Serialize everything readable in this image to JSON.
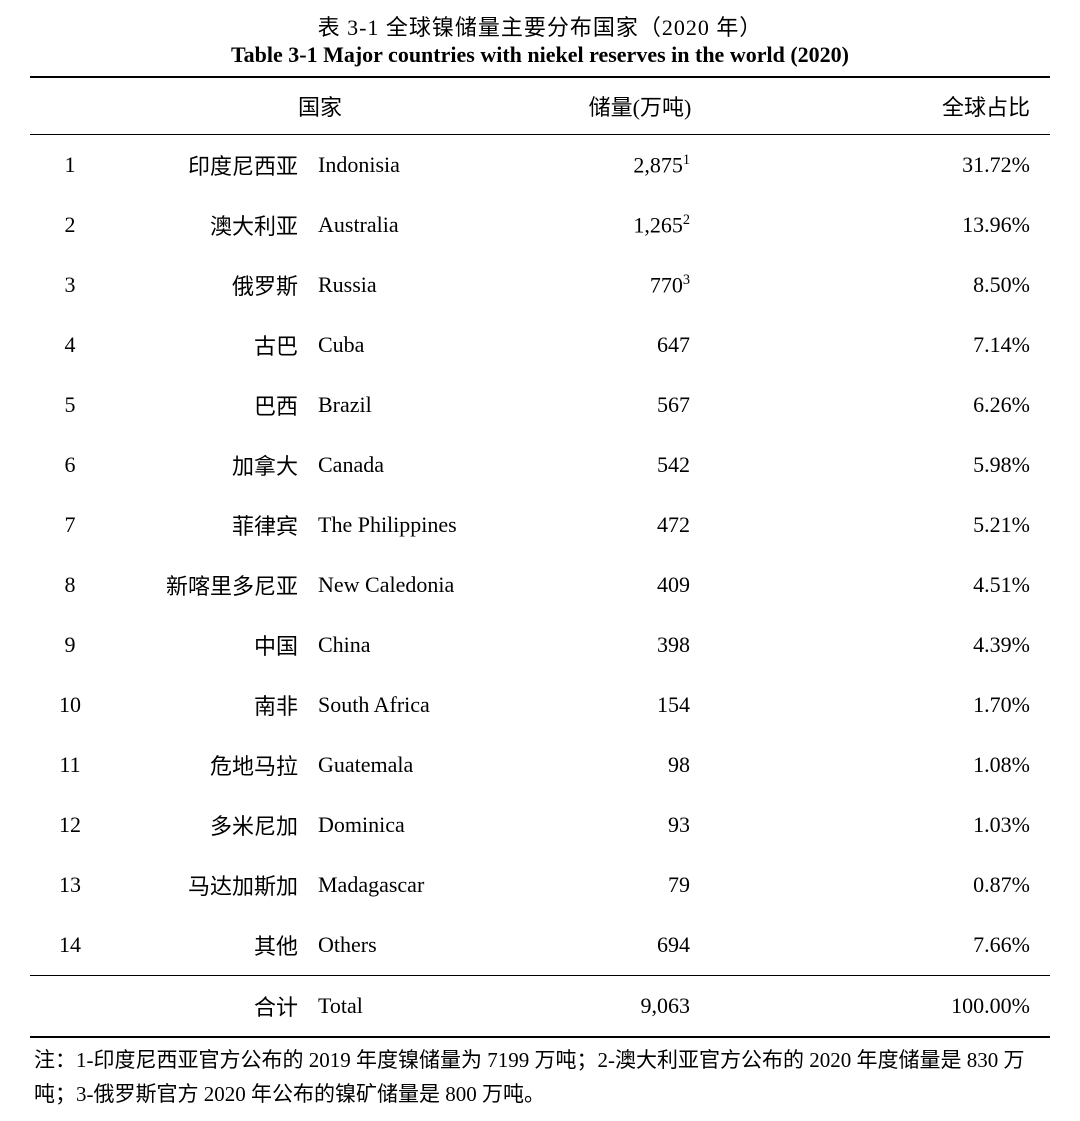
{
  "title": {
    "cn": "表 3-1 全球镍储量主要分布国家（2020 年）",
    "en": "Table 3-1 Major countries with niekel reserves in the world (2020)"
  },
  "headers": {
    "country": "国家",
    "reserves": "储量(万吨)",
    "share": "全球占比"
  },
  "rows": [
    {
      "rank": "1",
      "cn": "印度尼西亚",
      "en": "Indonisia",
      "reserves": "2,875",
      "sup": "1",
      "share": "31.72%"
    },
    {
      "rank": "2",
      "cn": "澳大利亚",
      "en": "Australia",
      "reserves": "1,265",
      "sup": "2",
      "share": "13.96%"
    },
    {
      "rank": "3",
      "cn": "俄罗斯",
      "en": "Russia",
      "reserves": "770",
      "sup": "3",
      "share": "8.50%"
    },
    {
      "rank": "4",
      "cn": "古巴",
      "en": "Cuba",
      "reserves": "647",
      "sup": "",
      "share": "7.14%"
    },
    {
      "rank": "5",
      "cn": "巴西",
      "en": "Brazil",
      "reserves": "567",
      "sup": "",
      "share": "6.26%"
    },
    {
      "rank": "6",
      "cn": "加拿大",
      "en": "Canada",
      "reserves": "542",
      "sup": "",
      "share": "5.98%"
    },
    {
      "rank": "7",
      "cn": "菲律宾",
      "en": "The Philippines",
      "reserves": "472",
      "sup": "",
      "share": "5.21%"
    },
    {
      "rank": "8",
      "cn": "新喀里多尼亚",
      "en": "New Caledonia",
      "reserves": "409",
      "sup": "",
      "share": "4.51%"
    },
    {
      "rank": "9",
      "cn": "中国",
      "en": "China",
      "reserves": "398",
      "sup": "",
      "share": "4.39%"
    },
    {
      "rank": "10",
      "cn": "南非",
      "en": "South Africa",
      "reserves": "154",
      "sup": "",
      "share": "1.70%"
    },
    {
      "rank": "11",
      "cn": "危地马拉",
      "en": "Guatemala",
      "reserves": "98",
      "sup": "",
      "share": "1.08%"
    },
    {
      "rank": "12",
      "cn": "多米尼加",
      "en": "Dominica",
      "reserves": "93",
      "sup": "",
      "share": "1.03%"
    },
    {
      "rank": "13",
      "cn": "马达加斯加",
      "en": "Madagascar",
      "reserves": "79",
      "sup": "",
      "share": "0.87%"
    },
    {
      "rank": "14",
      "cn": "其他",
      "en": "Others",
      "reserves": "694",
      "sup": "",
      "share": "7.66%"
    }
  ],
  "total": {
    "rank": "",
    "cn": "合计",
    "en": "Total",
    "reserves": "9,063",
    "share": "100.00%"
  },
  "footnote": "注：1-印度尼西亚官方公布的 2019 年度镍储量为 7199 万吨；2-澳大利亚官方公布的 2020 年度储量是 830 万吨；3-俄罗斯官方 2020 年公布的镍矿储量是 800 万吨。",
  "style": {
    "text_color": "#000000",
    "background_color": "#ffffff",
    "rule_color": "#000000",
    "title_fontsize": 22,
    "body_fontsize": 22,
    "footnote_fontsize": 21
  }
}
